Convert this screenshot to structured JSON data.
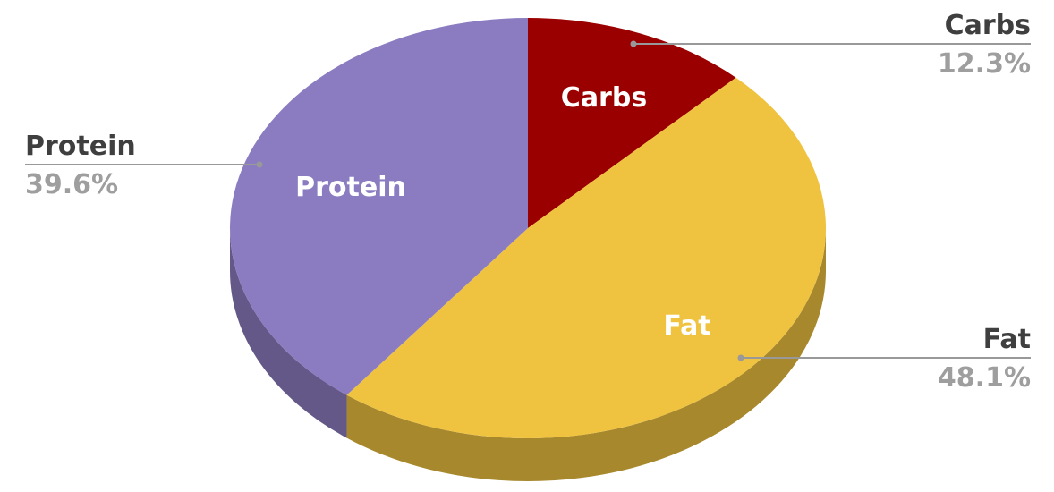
{
  "chart_data": {
    "type": "pie",
    "style": "3d",
    "start_angle": "top, clockwise",
    "slices": [
      {
        "label": "Carbs",
        "value": 12.3,
        "pct_label": "12.3%",
        "color": "#9b0000",
        "side_color": "#6d0000"
      },
      {
        "label": "Fat",
        "value": 48.1,
        "pct_label": "48.1%",
        "color": "#efc33f",
        "side_color": "#a8882d"
      },
      {
        "label": "Protein",
        "value": 39.6,
        "pct_label": "39.6%",
        "color": "#8b7cc1",
        "side_color": "#645888"
      }
    ],
    "legend": "none",
    "label_line_color": "#999999"
  }
}
